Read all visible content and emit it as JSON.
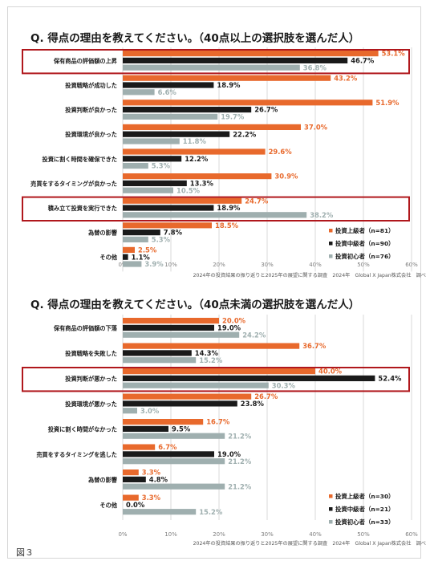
{
  "figure_label": "図３",
  "colors": {
    "advanced": "#E8692C",
    "intermediate": "#1A1A1A",
    "beginner": "#9FAFAF",
    "highlight": "#B0171C",
    "grid": "#D9D9D9",
    "axis_text": "#7F7F7F"
  },
  "chart_data": [
    {
      "type": "bar",
      "orientation": "horizontal",
      "title": "Q. 得点の理由を教えてください。（40点以上の選択肢を選んだ人）",
      "categories": [
        "保有商品の評価額の上昇",
        "投資戦略が成功した",
        "投資判断が良かった",
        "投資環境が良かった",
        "投資に割く時間を確保できた",
        "売買をするタイミングが良かった",
        "積み立て投資を実行できた",
        "為替の影響",
        "その他"
      ],
      "series": [
        {
          "name": "投資上級者（n=81）",
          "color_key": "advanced",
          "values": [
            53.1,
            43.2,
            51.9,
            37.0,
            29.6,
            30.9,
            24.7,
            18.5,
            2.5
          ]
        },
        {
          "name": "投資中級者（n=90）",
          "color_key": "intermediate",
          "values": [
            46.7,
            18.9,
            26.7,
            22.2,
            12.2,
            13.3,
            18.9,
            7.8,
            1.1
          ]
        },
        {
          "name": "投資初心者（n=76）",
          "color_key": "beginner",
          "values": [
            36.8,
            6.6,
            19.7,
            11.8,
            5.3,
            10.5,
            38.2,
            5.3,
            3.9
          ]
        }
      ],
      "value_labels": [
        [
          "53.1%",
          "43.2%",
          "51.9%",
          "37.0%",
          "29.6%",
          "30.9%",
          "24.7%",
          "18.5%",
          "2.5%"
        ],
        [
          "46.7%",
          "18.9%",
          "26.7%",
          "22.2%",
          "12.2%",
          "13.3%",
          "18.9%",
          "7.8%",
          "1.1%"
        ],
        [
          "36.8%",
          "6.6%",
          "19.7%",
          "11.8%",
          "5.3%",
          "10.5%",
          "38.2%",
          "5.3%",
          "3.9%"
        ]
      ],
      "xlim": [
        0,
        60
      ],
      "x_ticks": [
        "0%",
        "10%",
        "20%",
        "30%",
        "40%",
        "50%",
        "60%"
      ],
      "highlighted": [
        "保有商品の評価額の上昇",
        "積み立て投資を実行できた"
      ],
      "source": "2024年の投資結果の振り返りと2025年の展望に関する調査　2024年　Global X Japan株式会社　調べ",
      "legend_position": "bottom-right"
    },
    {
      "type": "bar",
      "orientation": "horizontal",
      "title": "Q. 得点の理由を教えてください。（40点未満の選択肢を選んだ人）",
      "categories": [
        "保有商品の評価額の下落",
        "投資戦略を失敗した",
        "投資判断が悪かった",
        "投資環境が悪かった",
        "投資に割く時間がなかった",
        "売買をするタイミングを逃した",
        "為替の影響",
        "その他"
      ],
      "series": [
        {
          "name": "投資上級者（n=30）",
          "color_key": "advanced",
          "values": [
            20.0,
            36.7,
            40.0,
            26.7,
            16.7,
            6.7,
            3.3,
            3.3
          ]
        },
        {
          "name": "投資中級者（n=21）",
          "color_key": "intermediate",
          "values": [
            19.0,
            14.3,
            52.4,
            23.8,
            9.5,
            19.0,
            4.8,
            0.0
          ]
        },
        {
          "name": "投資初心者（n=33）",
          "color_key": "beginner",
          "values": [
            24.2,
            15.2,
            30.3,
            3.0,
            21.2,
            21.2,
            21.2,
            15.2
          ]
        }
      ],
      "value_labels": [
        [
          "20.0%",
          "36.7%",
          "40.0%",
          "26.7%",
          "16.7%",
          "6.7%",
          "3.3%",
          "3.3%"
        ],
        [
          "19.0%",
          "14.3%",
          "52.4%",
          "23.8%",
          "9.5%",
          "19.0%",
          "4.8%",
          "0.0%"
        ],
        [
          "24.2%",
          "15.2%",
          "30.3%",
          "3.0%",
          "21.2%",
          "21.2%",
          "21.2%",
          "15.2%"
        ]
      ],
      "xlim": [
        0,
        60
      ],
      "x_ticks": [
        "0%",
        "10%",
        "20%",
        "30%",
        "40%",
        "50%",
        "60%"
      ],
      "highlighted": [
        "投資判断が悪かった"
      ],
      "source": "2024年の投資結果の振り返りと2025年の展望に関する調査　2024年　Global X Japan株式会社　調べ",
      "legend_position": "bottom-right"
    }
  ]
}
